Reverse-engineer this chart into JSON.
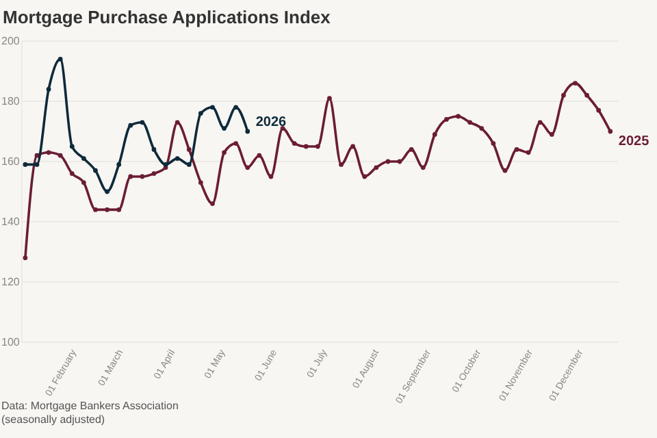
{
  "chart_data": {
    "type": "line",
    "title": "Mortgage Purchase Applications Index",
    "x": [
      "--01-03",
      "--01-10",
      "--01-17",
      "--01-24",
      "--01-31",
      "--02-07",
      "--02-14",
      "--02-21",
      "--02-28",
      "--03-07",
      "--03-14",
      "--03-21",
      "--03-28",
      "--04-04",
      "--04-11",
      "--04-18",
      "--04-25",
      "--05-02",
      "--05-09",
      "--05-16",
      "--05-23",
      "--05-30",
      "--06-06",
      "--06-13",
      "--06-20",
      "--06-27",
      "--07-04",
      "--07-11",
      "--07-18",
      "--07-25",
      "--08-01",
      "--08-08",
      "--08-15",
      "--08-22",
      "--08-29",
      "--09-05",
      "--09-12",
      "--09-19",
      "--09-26",
      "--10-03",
      "--10-10",
      "--10-17",
      "--10-24",
      "--10-31",
      "--11-07",
      "--11-14",
      "--11-21",
      "--11-28",
      "--12-05",
      "--12-12",
      "--12-19"
    ],
    "series": [
      {
        "name": "2026",
        "color": "#0e2a3b",
        "x": [
          "--01-03",
          "--01-10",
          "--01-17",
          "--01-24",
          "--01-31",
          "--02-07",
          "--02-14",
          "--02-21",
          "--02-28",
          "--03-07",
          "--03-14",
          "--03-21",
          "--03-28",
          "--04-04",
          "--04-11",
          "--04-18",
          "--04-25",
          "--05-02",
          "--05-09",
          "--05-16"
        ],
        "values": [
          159,
          159,
          184,
          194,
          165,
          161,
          157,
          150,
          159,
          172,
          173,
          164,
          159,
          161,
          159,
          176,
          178,
          171,
          178,
          170
        ]
      },
      {
        "name": "2025",
        "color": "#6b1d35",
        "values": [
          128,
          162,
          163,
          162,
          156,
          153,
          144,
          144,
          144,
          155,
          155,
          156,
          158,
          173,
          164,
          153,
          146,
          163,
          166,
          158,
          162,
          155,
          171,
          166,
          165,
          165,
          181,
          159,
          165,
          155,
          158,
          160,
          160,
          164,
          158,
          169,
          174,
          175,
          173,
          171,
          166,
          157,
          164,
          163,
          173,
          169,
          182,
          186,
          182,
          177,
          170
        ]
      }
    ],
    "xlim": [
      "--01-01",
      "--12-24"
    ],
    "xticks": [
      {
        "value": "--02-01",
        "label": "01 February"
      },
      {
        "value": "--03-01",
        "label": "01 March"
      },
      {
        "value": "--04-01",
        "label": "01 April"
      },
      {
        "value": "--05-01",
        "label": "01 May"
      },
      {
        "value": "--06-01",
        "label": "01 June"
      },
      {
        "value": "--07-01",
        "label": "01 July"
      },
      {
        "value": "--08-01",
        "label": "01 August"
      },
      {
        "value": "--09-01",
        "label": "01 September"
      },
      {
        "value": "--10-01",
        "label": "01 October"
      },
      {
        "value": "--11-01",
        "label": "01 November"
      },
      {
        "value": "--12-01",
        "label": "01 December"
      }
    ],
    "ylim": [
      100,
      200
    ],
    "yticks": [
      100,
      120,
      140,
      160,
      180,
      200
    ],
    "grid": "y",
    "marker": "circle",
    "line_style": "solid",
    "annotations": [
      "Data: Mortgage Bankers Association\n(seasonally adjusted)"
    ]
  }
}
